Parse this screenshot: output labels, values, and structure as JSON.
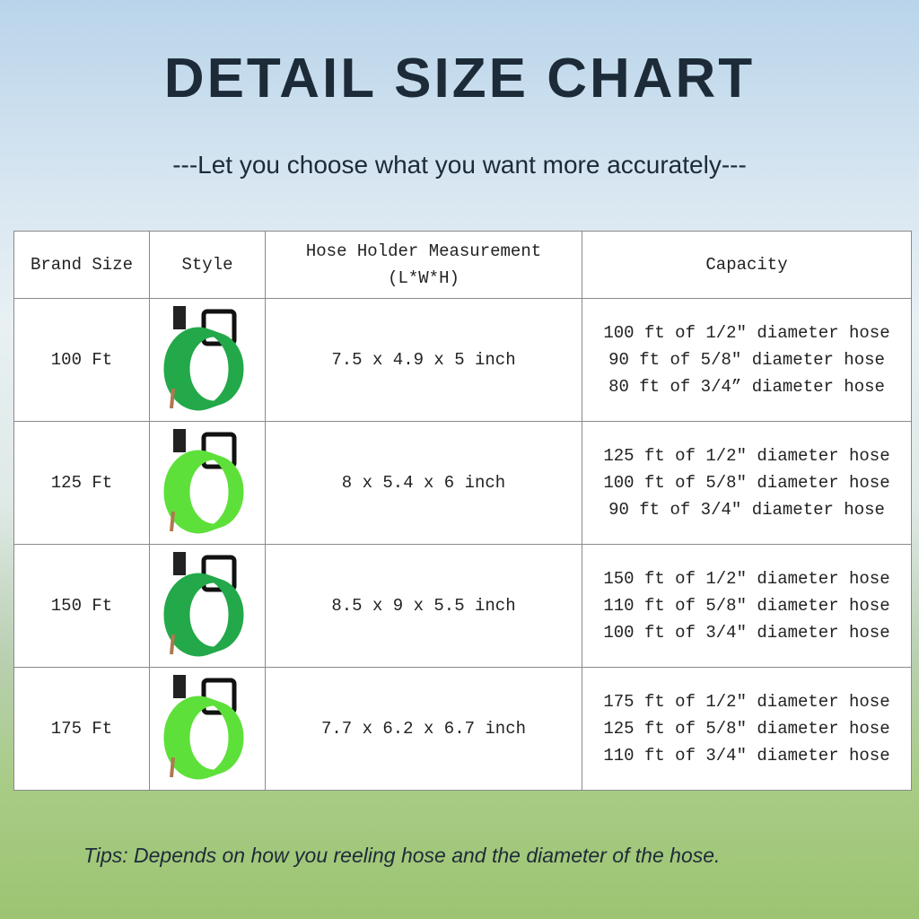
{
  "title": "DETAIL SIZE CHART",
  "subtitle": "---Let you choose what you want more accurately---",
  "table": {
    "headers": [
      "Brand Size",
      "Style",
      "Hose Holder Measurement",
      "(L*W*H)",
      "Capacity"
    ],
    "rows": [
      {
        "size": "100 Ft",
        "measurement": "7.5 x 4.9 x 5 inch",
        "capacity": [
          "100 ft of 1/2″ diameter hose",
          "90 ft of 5/8″ diameter hose",
          "80 ft of 3/4”  diameter hose"
        ],
        "hose_color": "#23a84a"
      },
      {
        "size": "125 Ft",
        "measurement": "8 x 5.4 x 6 inch",
        "capacity": [
          "125 ft of 1/2″ diameter hose",
          "100 ft of 5/8″ diameter hose",
          "90 ft of 3/4″ diameter hose"
        ],
        "hose_color": "#5ee03a"
      },
      {
        "size": "150 Ft",
        "measurement": "8.5 x 9 x 5.5 inch",
        "capacity": [
          "150 ft of 1/2″ diameter hose",
          "110 ft of 5/8″ diameter hose",
          "100 ft of 3/4″ diameter hose"
        ],
        "hose_color": "#23a84a"
      },
      {
        "size": "175 Ft",
        "measurement": "7.7 x 6.2 x 6.7 inch",
        "capacity": [
          "175 ft of 1/2″ diameter hose",
          "125 ft of 5/8″ diameter hose",
          "110 ft of 3/4″ diameter hose"
        ],
        "hose_color": "#5ee03a"
      }
    ]
  },
  "tips": "Tips: Depends on how you reeling hose and the diameter of the hose."
}
